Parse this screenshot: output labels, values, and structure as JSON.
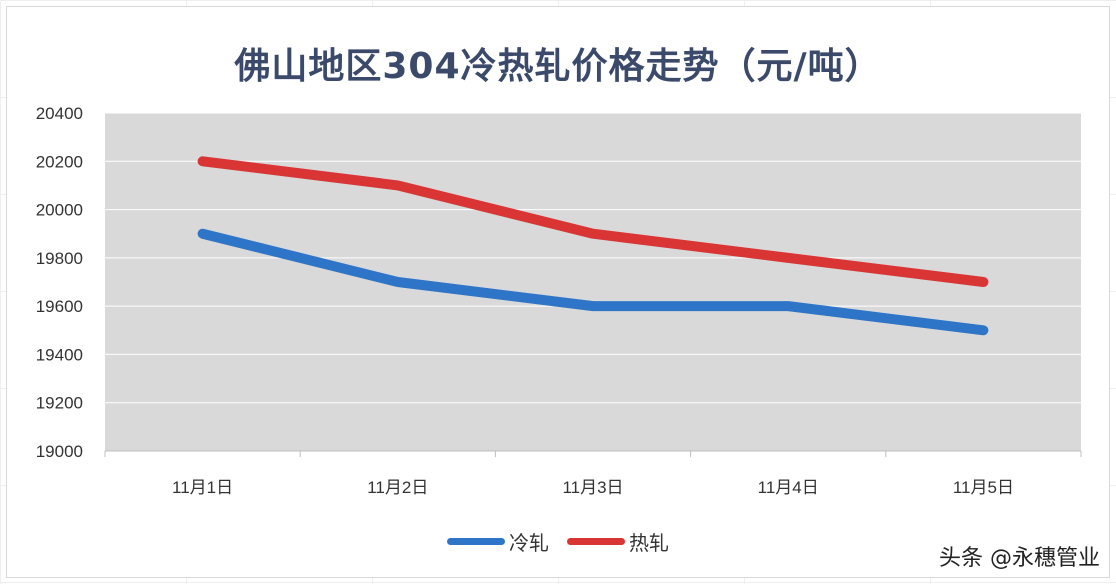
{
  "watermark": "头条 @永穗管业",
  "chart_data": {
    "type": "line",
    "title": "佛山地区304冷热轧价格走势（元/吨）",
    "categories": [
      "11月1日",
      "11月2日",
      "11月3日",
      "11月4日",
      "11月5日"
    ],
    "series": [
      {
        "name": "冷轧",
        "color": "#2e75c8",
        "values": [
          19900,
          19700,
          19600,
          19600,
          19500
        ]
      },
      {
        "name": "热轧",
        "color": "#d93535",
        "values": [
          20200,
          20100,
          19900,
          19800,
          19700
        ]
      }
    ],
    "ylim": [
      19000,
      20400
    ],
    "yticks": [
      "19000",
      "19200",
      "19400",
      "19600",
      "19800",
      "20000",
      "20200",
      "20400"
    ],
    "grid": true,
    "legend_position": "bottom",
    "plot_background": "#d9d9d9"
  }
}
